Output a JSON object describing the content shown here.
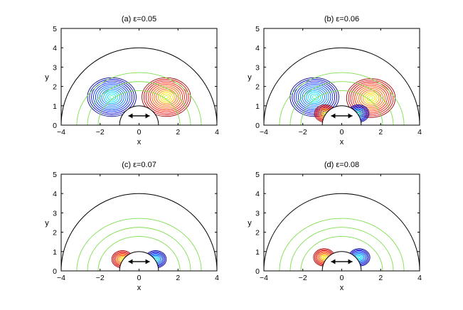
{
  "chart_data": [
    {
      "type": "contour",
      "title": "(a) ε=0.05",
      "xlabel": "x",
      "ylabel": "y",
      "xlim": [
        -4,
        4
      ],
      "ylim": [
        0,
        5
      ],
      "xticks": [
        -4,
        -2,
        0,
        2,
        4
      ],
      "yticks": [
        0,
        1,
        2,
        3,
        4,
        5
      ],
      "outer_boundary_radius": 4,
      "inner_cylinder_radius": 1,
      "vortices": [
        {
          "sign": "negative",
          "color": "#0000c8",
          "x": -1.4,
          "y": 1.45
        },
        {
          "sign": "positive",
          "color": "#c00000",
          "x": 1.4,
          "y": 1.45
        }
      ],
      "near_body_lobes": false,
      "annotation": "↔"
    },
    {
      "type": "contour",
      "title": "(b) ε=0.06",
      "xlabel": "x",
      "ylabel": "y",
      "xlim": [
        -4,
        4
      ],
      "ylim": [
        0,
        5
      ],
      "xticks": [
        -4,
        -2,
        0,
        2,
        4
      ],
      "yticks": [
        0,
        1,
        2,
        3,
        4,
        5
      ],
      "outer_boundary_radius": 4,
      "inner_cylinder_radius": 1,
      "vortices": [
        {
          "sign": "negative",
          "color": "#0000c8",
          "x": -1.4,
          "y": 1.45
        },
        {
          "sign": "positive",
          "color": "#c00000",
          "x": 1.5,
          "y": 1.4
        },
        {
          "sign": "positive",
          "color": "#c00000",
          "x": -0.85,
          "y": 0.6
        },
        {
          "sign": "negative",
          "color": "#0000c8",
          "x": 0.85,
          "y": 0.6
        }
      ],
      "near_body_lobes": true,
      "annotation": "↔"
    },
    {
      "type": "contour",
      "title": "(c) ε=0.07",
      "xlabel": "x",
      "ylabel": "y",
      "xlim": [
        -4,
        4
      ],
      "ylim": [
        0,
        5
      ],
      "xticks": [
        -4,
        -2,
        0,
        2,
        4
      ],
      "yticks": [
        0,
        1,
        2,
        3,
        4,
        5
      ],
      "outer_boundary_radius": 4,
      "inner_cylinder_radius": 1,
      "vortices": [
        {
          "sign": "positive",
          "color": "#c00000",
          "x": -0.85,
          "y": 0.6
        },
        {
          "sign": "negative",
          "color": "#0000c8",
          "x": 0.85,
          "y": 0.6
        }
      ],
      "near_body_lobes": true,
      "annotation": "↔"
    },
    {
      "type": "contour",
      "title": "(d) ε=0.08",
      "xlabel": "x",
      "ylabel": "y",
      "xlim": [
        -4,
        4
      ],
      "ylim": [
        0,
        5
      ],
      "xticks": [
        -4,
        -2,
        0,
        2,
        4
      ],
      "yticks": [
        0,
        1,
        2,
        3,
        4,
        5
      ],
      "outer_boundary_radius": 4,
      "inner_cylinder_radius": 1,
      "vortices": [
        {
          "sign": "positive",
          "color": "#c00000",
          "x": -0.9,
          "y": 0.7
        },
        {
          "sign": "negative",
          "color": "#0000c8",
          "x": 0.9,
          "y": 0.7
        }
      ],
      "near_body_lobes": true,
      "annotation": "↔"
    }
  ]
}
